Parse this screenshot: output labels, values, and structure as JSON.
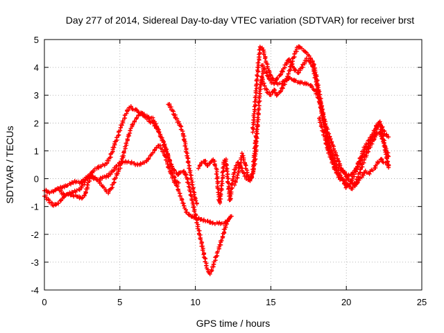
{
  "chart_data": {
    "type": "scatter",
    "title": "Day 277 of 2014, Sidereal Day-to-day VTEC variation (SDTVAR) for receiver brst",
    "xlabel": "GPS time / hours",
    "ylabel": "SDTVAR / TECUs",
    "xlim": [
      0,
      25
    ],
    "ylim": [
      -4,
      5
    ],
    "xticks": [
      0,
      5,
      10,
      15,
      20,
      25
    ],
    "yticks": [
      -4,
      -3,
      -2,
      -1,
      0,
      1,
      2,
      3,
      4,
      5
    ],
    "grid": true,
    "marker": "plus",
    "color": "#ff0000",
    "traces": [
      [
        [
          0.0,
          -0.4
        ],
        [
          0.3,
          -0.5
        ],
        [
          0.6,
          -0.45
        ],
        [
          0.9,
          -0.35
        ],
        [
          1.2,
          -0.3
        ],
        [
          1.5,
          -0.25
        ],
        [
          1.8,
          -0.15
        ],
        [
          2.1,
          -0.1
        ],
        [
          2.4,
          -0.15
        ],
        [
          2.7,
          0.0
        ],
        [
          3.0,
          0.1
        ],
        [
          3.3,
          0.0
        ],
        [
          3.6,
          -0.05
        ],
        [
          3.9,
          0.05
        ],
        [
          4.2,
          0.1
        ],
        [
          4.5,
          0.25
        ],
        [
          4.7,
          0.4
        ],
        [
          5.0,
          0.55
        ],
        [
          5.3,
          0.6
        ],
        [
          5.6,
          0.6
        ],
        [
          5.9,
          0.55
        ],
        [
          6.2,
          0.5
        ],
        [
          6.5,
          0.55
        ],
        [
          6.8,
          0.65
        ],
        [
          7.0,
          0.8
        ],
        [
          7.2,
          0.95
        ],
        [
          7.4,
          1.1
        ],
        [
          7.6,
          1.2
        ],
        [
          7.8,
          1.05
        ],
        [
          8.0,
          0.8
        ],
        [
          8.2,
          0.45
        ],
        [
          8.4,
          0.15
        ],
        [
          8.6,
          -0.1
        ],
        [
          8.8,
          -0.3
        ],
        [
          9.0,
          -0.6
        ],
        [
          9.2,
          -0.9
        ],
        [
          9.4,
          -1.2
        ],
        [
          9.7,
          -1.35
        ],
        [
          10.0,
          -1.4
        ],
        [
          10.3,
          -1.45
        ],
        [
          10.6,
          -1.5
        ],
        [
          10.9,
          -1.55
        ],
        [
          11.2,
          -1.6
        ],
        [
          11.5,
          -1.6
        ],
        [
          11.8,
          -1.6
        ],
        [
          12.1,
          -1.55
        ],
        [
          12.3,
          -1.4
        ]
      ],
      [
        [
          0.0,
          -0.6
        ],
        [
          0.3,
          -0.8
        ],
        [
          0.6,
          -0.95
        ],
        [
          0.9,
          -0.9
        ],
        [
          1.2,
          -0.7
        ],
        [
          1.5,
          -0.55
        ],
        [
          1.8,
          -0.5
        ],
        [
          2.1,
          -0.45
        ],
        [
          2.4,
          -0.35
        ],
        [
          2.7,
          -0.1
        ],
        [
          3.0,
          0.15
        ],
        [
          3.3,
          0.05
        ],
        [
          3.6,
          -0.1
        ],
        [
          3.9,
          -0.3
        ],
        [
          4.2,
          -0.5
        ],
        [
          4.4,
          -0.4
        ],
        [
          4.6,
          -0.1
        ],
        [
          4.8,
          0.15
        ],
        [
          5.0,
          0.4
        ],
        [
          5.2,
          0.8
        ],
        [
          5.4,
          1.2
        ],
        [
          5.6,
          1.6
        ],
        [
          5.8,
          1.9
        ],
        [
          6.0,
          2.1
        ],
        [
          6.2,
          2.25
        ],
        [
          6.4,
          2.35
        ],
        [
          6.6,
          2.3
        ],
        [
          6.8,
          2.15
        ],
        [
          7.0,
          2.05
        ],
        [
          7.2,
          2.0
        ],
        [
          7.4,
          1.85
        ],
        [
          7.6,
          1.65
        ],
        [
          7.8,
          1.4
        ],
        [
          8.0,
          1.1
        ],
        [
          8.2,
          0.8
        ],
        [
          8.4,
          0.5
        ],
        [
          8.6,
          0.3
        ],
        [
          8.8,
          0.15
        ],
        [
          9.0,
          0.2
        ],
        [
          9.2,
          0.3
        ],
        [
          9.4,
          0.1
        ],
        [
          9.6,
          -0.3
        ],
        [
          9.8,
          -0.8
        ],
        [
          10.0,
          -1.3
        ],
        [
          10.2,
          -1.8
        ],
        [
          10.4,
          -2.3
        ],
        [
          10.6,
          -2.8
        ],
        [
          10.8,
          -3.3
        ],
        [
          11.0,
          -3.4
        ],
        [
          11.2,
          -3.1
        ],
        [
          11.5,
          -2.6
        ],
        [
          11.8,
          -2.1
        ],
        [
          12.0,
          -1.7
        ],
        [
          12.2,
          -1.45
        ],
        [
          12.4,
          -1.35
        ]
      ],
      [
        [
          1.0,
          -0.4
        ],
        [
          1.3,
          -0.6
        ],
        [
          1.6,
          -0.55
        ],
        [
          1.9,
          -0.6
        ],
        [
          2.2,
          -0.65
        ],
        [
          2.5,
          -0.7
        ],
        [
          2.7,
          -0.55
        ],
        [
          2.9,
          -0.2
        ],
        [
          3.1,
          0.2
        ],
        [
          3.3,
          0.3
        ],
        [
          3.5,
          0.4
        ],
        [
          3.8,
          0.45
        ],
        [
          4.1,
          0.55
        ],
        [
          4.3,
          0.7
        ],
        [
          4.5,
          1.0
        ],
        [
          4.7,
          1.3
        ],
        [
          4.9,
          1.6
        ],
        [
          5.1,
          1.9
        ],
        [
          5.3,
          2.2
        ],
        [
          5.5,
          2.45
        ],
        [
          5.7,
          2.6
        ],
        [
          5.9,
          2.5
        ],
        [
          6.1,
          2.45
        ],
        [
          6.3,
          2.4
        ],
        [
          6.5,
          2.3
        ],
        [
          6.7,
          2.25
        ],
        [
          6.9,
          2.2
        ],
        [
          7.1,
          2.2
        ],
        [
          7.3,
          2.05
        ],
        [
          7.5,
          1.8
        ],
        [
          7.7,
          1.55
        ],
        [
          7.9,
          1.3
        ],
        [
          8.1,
          1.0
        ],
        [
          8.3,
          0.6
        ],
        [
          8.5,
          0.2
        ],
        [
          8.7,
          -0.1
        ],
        [
          8.9,
          -0.15
        ]
      ],
      [
        [
          8.2,
          2.7
        ],
        [
          8.4,
          2.55
        ],
        [
          8.6,
          2.3
        ],
        [
          8.8,
          2.1
        ],
        [
          9.0,
          1.9
        ],
        [
          9.2,
          1.6
        ],
        [
          9.3,
          1.3
        ],
        [
          9.4,
          1.0
        ],
        [
          9.5,
          0.7
        ],
        [
          9.6,
          0.4
        ],
        [
          9.7,
          0.1
        ],
        [
          9.8,
          -0.2
        ],
        [
          9.9,
          -0.5
        ],
        [
          10.0,
          -0.75
        ],
        [
          10.1,
          -0.9
        ]
      ],
      [
        [
          10.2,
          0.4
        ],
        [
          10.4,
          0.55
        ],
        [
          10.6,
          0.65
        ],
        [
          10.8,
          0.45
        ],
        [
          11.0,
          0.6
        ],
        [
          11.2,
          0.7
        ],
        [
          11.4,
          0.3
        ],
        [
          11.5,
          -0.3
        ],
        [
          11.6,
          -0.9
        ],
        [
          11.7,
          -0.5
        ],
        [
          11.8,
          0.1
        ],
        [
          11.9,
          0.6
        ],
        [
          12.0,
          0.7
        ],
        [
          12.1,
          0.3
        ],
        [
          12.2,
          -0.3
        ],
        [
          12.3,
          -0.8
        ],
        [
          12.4,
          -0.3
        ],
        [
          12.6,
          0.3
        ],
        [
          12.8,
          0.6
        ],
        [
          13.0,
          0.45
        ],
        [
          13.2,
          0.2
        ],
        [
          13.4,
          0.0
        ],
        [
          13.6,
          -0.1
        ],
        [
          13.8,
          0.2
        ],
        [
          13.9,
          0.8
        ],
        [
          14.0,
          1.4
        ],
        [
          14.1,
          1.9
        ]
      ],
      [
        [
          12.6,
          -0.2
        ],
        [
          12.8,
          0.1
        ],
        [
          13.0,
          0.6
        ],
        [
          13.1,
          0.9
        ],
        [
          13.3,
          0.5
        ],
        [
          13.5,
          0.1
        ],
        [
          13.7,
          0.0
        ],
        [
          13.9,
          0.4
        ],
        [
          14.0,
          1.0
        ],
        [
          14.1,
          1.8
        ],
        [
          14.2,
          2.6
        ],
        [
          14.3,
          3.3
        ],
        [
          14.5,
          3.9
        ]
      ],
      [
        [
          13.8,
          1.7
        ],
        [
          13.9,
          2.3
        ],
        [
          14.0,
          3.0
        ],
        [
          14.1,
          3.7
        ],
        [
          14.2,
          4.3
        ],
        [
          14.3,
          4.75
        ],
        [
          14.5,
          4.6
        ],
        [
          14.7,
          4.2
        ],
        [
          14.9,
          3.8
        ],
        [
          15.1,
          3.6
        ],
        [
          15.3,
          3.5
        ],
        [
          15.5,
          3.4
        ],
        [
          15.7,
          3.4
        ],
        [
          15.9,
          3.5
        ],
        [
          16.1,
          3.6
        ],
        [
          16.3,
          3.6
        ],
        [
          16.5,
          3.55
        ],
        [
          16.7,
          3.5
        ],
        [
          16.9,
          3.45
        ],
        [
          17.1,
          3.45
        ],
        [
          17.3,
          3.4
        ],
        [
          17.5,
          3.4
        ],
        [
          17.7,
          3.3
        ],
        [
          17.9,
          3.2
        ],
        [
          18.1,
          3.0
        ],
        [
          18.3,
          2.6
        ],
        [
          18.5,
          2.2
        ],
        [
          18.7,
          1.8
        ],
        [
          18.9,
          1.5
        ],
        [
          19.1,
          1.2
        ],
        [
          19.3,
          0.9
        ],
        [
          19.5,
          0.6
        ],
        [
          19.7,
          0.35
        ],
        [
          19.9,
          0.15
        ],
        [
          20.1,
          0.0
        ],
        [
          20.3,
          -0.1
        ],
        [
          20.5,
          -0.2
        ],
        [
          20.7,
          -0.15
        ],
        [
          20.9,
          0.0
        ],
        [
          21.1,
          0.15
        ],
        [
          21.3,
          0.25
        ],
        [
          21.5,
          0.2
        ],
        [
          21.7,
          0.3
        ],
        [
          21.9,
          0.4
        ],
        [
          22.1,
          0.6
        ],
        [
          22.3,
          0.7
        ],
        [
          22.5,
          0.6
        ],
        [
          22.8,
          0.5
        ]
      ],
      [
        [
          14.4,
          3.6
        ],
        [
          14.6,
          3.3
        ],
        [
          14.8,
          3.1
        ],
        [
          15.0,
          3.0
        ],
        [
          15.2,
          3.2
        ],
        [
          15.4,
          3.0
        ],
        [
          15.6,
          3.1
        ],
        [
          15.8,
          3.3
        ],
        [
          16.0,
          3.5
        ],
        [
          16.2,
          3.8
        ],
        [
          16.4,
          4.2
        ],
        [
          16.6,
          4.5
        ],
        [
          16.8,
          4.75
        ],
        [
          17.0,
          4.7
        ],
        [
          17.2,
          4.6
        ],
        [
          17.4,
          4.5
        ],
        [
          17.6,
          4.35
        ],
        [
          17.8,
          4.2
        ],
        [
          18.0,
          3.7
        ],
        [
          18.2,
          3.1
        ],
        [
          18.4,
          2.5
        ],
        [
          18.6,
          1.9
        ],
        [
          18.8,
          1.4
        ],
        [
          19.0,
          1.0
        ],
        [
          19.2,
          0.7
        ],
        [
          19.4,
          0.5
        ],
        [
          19.6,
          0.35
        ],
        [
          19.8,
          0.25
        ],
        [
          20.0,
          0.15
        ],
        [
          20.2,
          0.1
        ],
        [
          20.4,
          0.2
        ],
        [
          20.6,
          0.3
        ],
        [
          20.8,
          0.45
        ],
        [
          21.0,
          0.65
        ],
        [
          21.2,
          0.9
        ],
        [
          21.4,
          1.15
        ],
        [
          21.6,
          1.35
        ],
        [
          21.8,
          1.55
        ],
        [
          22.0,
          1.8
        ],
        [
          22.2,
          2.0
        ],
        [
          22.4,
          1.8
        ],
        [
          22.6,
          1.6
        ],
        [
          22.8,
          1.5
        ]
      ],
      [
        [
          14.4,
          4.1
        ],
        [
          14.6,
          3.9
        ],
        [
          14.8,
          3.7
        ],
        [
          15.0,
          3.5
        ],
        [
          15.2,
          3.4
        ],
        [
          15.4,
          3.6
        ],
        [
          15.6,
          3.7
        ],
        [
          15.8,
          3.9
        ],
        [
          16.0,
          4.1
        ],
        [
          16.2,
          4.3
        ],
        [
          16.4,
          4.1
        ],
        [
          16.6,
          3.9
        ],
        [
          16.8,
          3.8
        ],
        [
          17.0,
          3.95
        ],
        [
          17.2,
          4.15
        ],
        [
          17.4,
          4.3
        ],
        [
          17.6,
          4.2
        ],
        [
          17.8,
          4.0
        ],
        [
          18.0,
          3.5
        ],
        [
          18.2,
          2.9
        ],
        [
          18.4,
          2.3
        ],
        [
          18.6,
          1.7
        ],
        [
          18.8,
          1.2
        ],
        [
          19.0,
          0.8
        ],
        [
          19.2,
          0.5
        ],
        [
          19.4,
          0.3
        ],
        [
          19.6,
          0.1
        ],
        [
          19.8,
          -0.05
        ],
        [
          20.0,
          -0.15
        ],
        [
          20.2,
          -0.3
        ],
        [
          20.4,
          -0.35
        ],
        [
          20.6,
          -0.2
        ],
        [
          20.8,
          0.1
        ],
        [
          21.0,
          0.4
        ],
        [
          21.2,
          0.7
        ],
        [
          21.4,
          0.95
        ],
        [
          21.6,
          1.2
        ],
        [
          21.8,
          1.4
        ],
        [
          22.0,
          1.6
        ],
        [
          22.2,
          1.7
        ],
        [
          22.4,
          1.4
        ],
        [
          22.6,
          1.1
        ],
        [
          22.8,
          0.8
        ]
      ],
      [
        [
          18.2,
          2.2
        ],
        [
          18.4,
          1.8
        ],
        [
          18.6,
          1.4
        ],
        [
          18.8,
          1.0
        ],
        [
          19.0,
          0.7
        ],
        [
          19.2,
          0.4
        ],
        [
          19.4,
          0.15
        ],
        [
          19.6,
          0.0
        ],
        [
          19.8,
          -0.1
        ],
        [
          20.0,
          -0.3
        ],
        [
          20.2,
          -0.2
        ],
        [
          20.4,
          0.0
        ],
        [
          20.6,
          0.25
        ],
        [
          20.8,
          0.55
        ],
        [
          21.0,
          0.85
        ],
        [
          21.2,
          1.1
        ],
        [
          21.4,
          1.3
        ],
        [
          21.6,
          1.45
        ],
        [
          21.8,
          1.65
        ],
        [
          22.0,
          1.9
        ],
        [
          22.2,
          2.05
        ],
        [
          22.4,
          1.6
        ],
        [
          22.6,
          1.0
        ],
        [
          22.8,
          0.4
        ]
      ]
    ]
  }
}
